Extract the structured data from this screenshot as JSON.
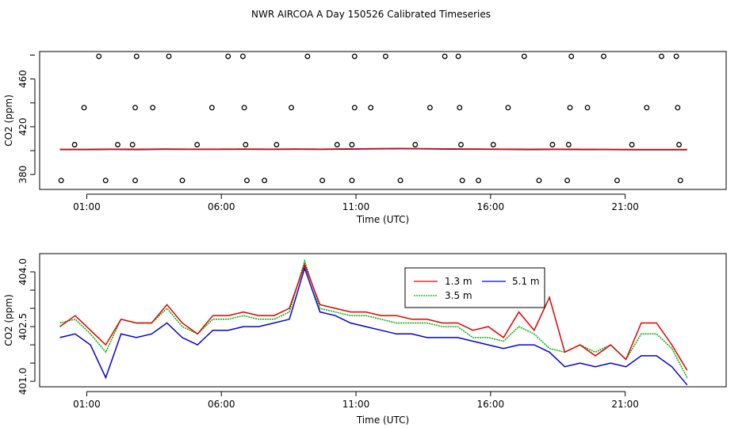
{
  "title": "NWR AIRCOA A  Day 150526  Calibrated Timeseries",
  "colors": {
    "s1": "#e00000",
    "s2": "#00b000",
    "s3": "#0000dd",
    "axis": "#000000"
  },
  "chart_data": [
    {
      "type": "scatter",
      "xlabel": "Time (UTC)",
      "ylabel": "CO2 (ppm)",
      "xlim": [
        -0.75,
        24.75
      ],
      "ylim": [
        367.5,
        483
      ],
      "xticks": [
        1,
        6,
        11,
        16,
        21
      ],
      "xtick_labels": [
        "01:00",
        "06:00",
        "11:00",
        "16:00",
        "21:00"
      ],
      "yticks": [
        380,
        420,
        460
      ],
      "ytick_labels": [
        "380",
        "420",
        "460"
      ],
      "outliers": [
        {
          "x": 0.05,
          "y": 375
        },
        {
          "x": 0.55,
          "y": 405
        },
        {
          "x": 0.9,
          "y": 436
        },
        {
          "x": 1.45,
          "y": 479
        },
        {
          "x": 1.7,
          "y": 375
        },
        {
          "x": 2.15,
          "y": 405
        },
        {
          "x": 2.7,
          "y": 405
        },
        {
          "x": 2.8,
          "y": 375
        },
        {
          "x": 2.8,
          "y": 436
        },
        {
          "x": 2.85,
          "y": 479
        },
        {
          "x": 3.45,
          "y": 436
        },
        {
          "x": 4.05,
          "y": 479
        },
        {
          "x": 4.55,
          "y": 375
        },
        {
          "x": 5.1,
          "y": 405
        },
        {
          "x": 5.65,
          "y": 436
        },
        {
          "x": 6.25,
          "y": 479
        },
        {
          "x": 6.8,
          "y": 479
        },
        {
          "x": 6.85,
          "y": 436
        },
        {
          "x": 6.9,
          "y": 405
        },
        {
          "x": 6.95,
          "y": 375
        },
        {
          "x": 7.6,
          "y": 375
        },
        {
          "x": 8.05,
          "y": 405
        },
        {
          "x": 8.6,
          "y": 436
        },
        {
          "x": 9.2,
          "y": 479
        },
        {
          "x": 9.75,
          "y": 375
        },
        {
          "x": 10.3,
          "y": 405
        },
        {
          "x": 10.85,
          "y": 375
        },
        {
          "x": 10.85,
          "y": 405
        },
        {
          "x": 10.95,
          "y": 436
        },
        {
          "x": 10.95,
          "y": 479
        },
        {
          "x": 11.55,
          "y": 436
        },
        {
          "x": 12.1,
          "y": 479
        },
        {
          "x": 12.65,
          "y": 375
        },
        {
          "x": 13.2,
          "y": 405
        },
        {
          "x": 13.75,
          "y": 436
        },
        {
          "x": 14.3,
          "y": 479
        },
        {
          "x": 14.8,
          "y": 479
        },
        {
          "x": 14.85,
          "y": 436
        },
        {
          "x": 14.9,
          "y": 405
        },
        {
          "x": 14.95,
          "y": 375
        },
        {
          "x": 15.55,
          "y": 375
        },
        {
          "x": 16.1,
          "y": 405
        },
        {
          "x": 16.65,
          "y": 436
        },
        {
          "x": 17.25,
          "y": 479
        },
        {
          "x": 17.8,
          "y": 375
        },
        {
          "x": 18.3,
          "y": 405
        },
        {
          "x": 18.85,
          "y": 375
        },
        {
          "x": 18.9,
          "y": 405
        },
        {
          "x": 18.95,
          "y": 436
        },
        {
          "x": 19.0,
          "y": 479
        },
        {
          "x": 19.6,
          "y": 436
        },
        {
          "x": 20.2,
          "y": 479
        },
        {
          "x": 20.7,
          "y": 375
        },
        {
          "x": 21.25,
          "y": 405
        },
        {
          "x": 21.8,
          "y": 436
        },
        {
          "x": 22.35,
          "y": 479
        },
        {
          "x": 22.9,
          "y": 479
        },
        {
          "x": 22.95,
          "y": 436
        },
        {
          "x": 23.0,
          "y": 405
        },
        {
          "x": 23.05,
          "y": 375
        }
      ],
      "series": [
        {
          "name": "1.3 m",
          "values": [
            401,
            401,
            401.2,
            401.1,
            401.3,
            401.2,
            401.2,
            401.3,
            401.2,
            401.3,
            401.2,
            401.4,
            401.6,
            401.8,
            401.6,
            401.4,
            401.3,
            401.2,
            401.1,
            401.2,
            401.1,
            401.0,
            400.9,
            400.9,
            400.9
          ]
        },
        {
          "name": "3.5 m",
          "values": [
            401.2,
            401.2,
            401.3,
            401.2,
            401.4,
            401.3,
            401.3,
            401.4,
            401.3,
            401.4,
            401.3,
            401.5,
            401.7,
            401.9,
            401.7,
            401.5,
            401.4,
            401.3,
            401.2,
            401.3,
            401.2,
            401.1,
            401.0,
            401.0,
            401.0
          ]
        },
        {
          "name": "5.1 m",
          "values": [
            400.8,
            400.8,
            401.0,
            400.9,
            401.1,
            401.0,
            401.0,
            401.1,
            401.0,
            401.1,
            401.0,
            401.2,
            401.4,
            401.6,
            401.4,
            401.2,
            401.1,
            401.0,
            400.9,
            401.0,
            400.9,
            400.8,
            400.7,
            400.7,
            400.7
          ]
        }
      ],
      "series_x_start": 0,
      "series_x_end": 23.3
    },
    {
      "type": "line",
      "xlabel": "Time (UTC)",
      "ylabel": "CO2 (ppm)",
      "xlim": [
        -0.75,
        24.75
      ],
      "ylim": [
        400.85,
        404.5
      ],
      "xticks": [
        1,
        6,
        11,
        16,
        21
      ],
      "xtick_labels": [
        "01:00",
        "06:00",
        "11:00",
        "16:00",
        "21:00"
      ],
      "yticks": [
        401.0,
        402.5,
        404.0
      ],
      "ytick_labels": [
        "401.0",
        "402.5",
        "404.0"
      ],
      "legend_position": "top-center",
      "x_start": 0,
      "x_end": 23.3,
      "series": [
        {
          "name": "1.3 m",
          "values": [
            402.5,
            402.8,
            402.4,
            402.0,
            402.7,
            402.6,
            402.6,
            403.1,
            402.6,
            402.3,
            402.8,
            402.8,
            402.9,
            402.8,
            402.8,
            403.0,
            404.2,
            403.1,
            403.0,
            402.9,
            402.9,
            402.8,
            402.8,
            402.7,
            402.7,
            402.6,
            402.6,
            402.4,
            402.5,
            402.2,
            402.9,
            402.4,
            403.3,
            401.8,
            402.0,
            401.7,
            402.0,
            401.6,
            402.6,
            402.6,
            402.0,
            401.3
          ]
        },
        {
          "name": "3.5 m",
          "values": [
            402.6,
            402.7,
            402.3,
            401.8,
            402.7,
            402.6,
            402.6,
            403.0,
            402.5,
            402.3,
            402.7,
            402.7,
            402.8,
            402.7,
            402.7,
            402.9,
            404.3,
            403.0,
            402.9,
            402.8,
            402.8,
            402.7,
            402.6,
            402.6,
            402.6,
            402.5,
            402.5,
            402.2,
            402.2,
            402.1,
            402.5,
            402.3,
            401.9,
            401.8,
            402.0,
            401.8,
            402.0,
            401.6,
            402.3,
            402.3,
            401.9,
            401.1
          ]
        },
        {
          "name": "5.1 m",
          "values": [
            402.2,
            402.3,
            402.0,
            401.1,
            402.3,
            402.2,
            402.3,
            402.6,
            402.2,
            402.0,
            402.4,
            402.4,
            402.5,
            402.5,
            402.6,
            402.7,
            404.1,
            402.9,
            402.8,
            402.6,
            402.5,
            402.4,
            402.3,
            402.3,
            402.2,
            402.2,
            402.2,
            402.1,
            402.0,
            401.9,
            402.0,
            402.0,
            401.8,
            401.4,
            401.5,
            401.4,
            401.5,
            401.4,
            401.7,
            401.7,
            401.4,
            400.9
          ]
        }
      ]
    }
  ]
}
